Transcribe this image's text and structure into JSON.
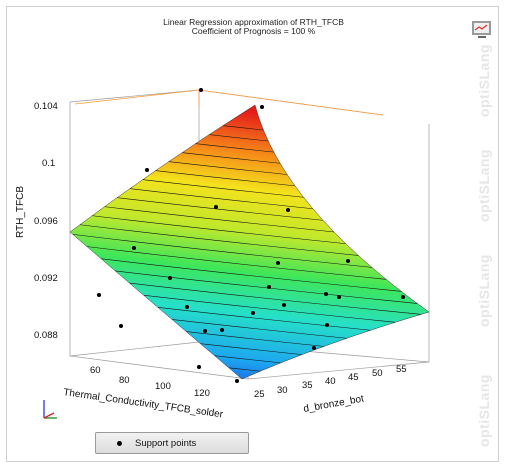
{
  "title": {
    "line1": "Linear Regression  approximation of RTH_TFCB",
    "line2": "Coefficient of Prognosis = 100 %"
  },
  "legend": {
    "label": "Support points"
  },
  "watermark": {
    "text": "optiSLang"
  },
  "export_icon": "screen-export-icon",
  "colors": {
    "accent_line": "#ff9a33",
    "grid": "#111111",
    "point": "#000000"
  },
  "chart_data": {
    "type": "surface-3d",
    "zlabel": "RTH_TFCB",
    "xlabel": "Thermal_Conductivity_TFCB_solder",
    "ylabel": "d_bronze_bot",
    "z_ticks": [
      "0.088",
      "0.092",
      "0.096",
      "0.1",
      "0.104"
    ],
    "x_ticks": [
      "60",
      "80",
      "100",
      "120"
    ],
    "y_ticks": [
      "25",
      "30",
      "35",
      "40",
      "45",
      "50",
      "55"
    ],
    "surface_colormap": "jet",
    "series": [
      {
        "name": "Support points",
        "count": 24
      }
    ]
  }
}
